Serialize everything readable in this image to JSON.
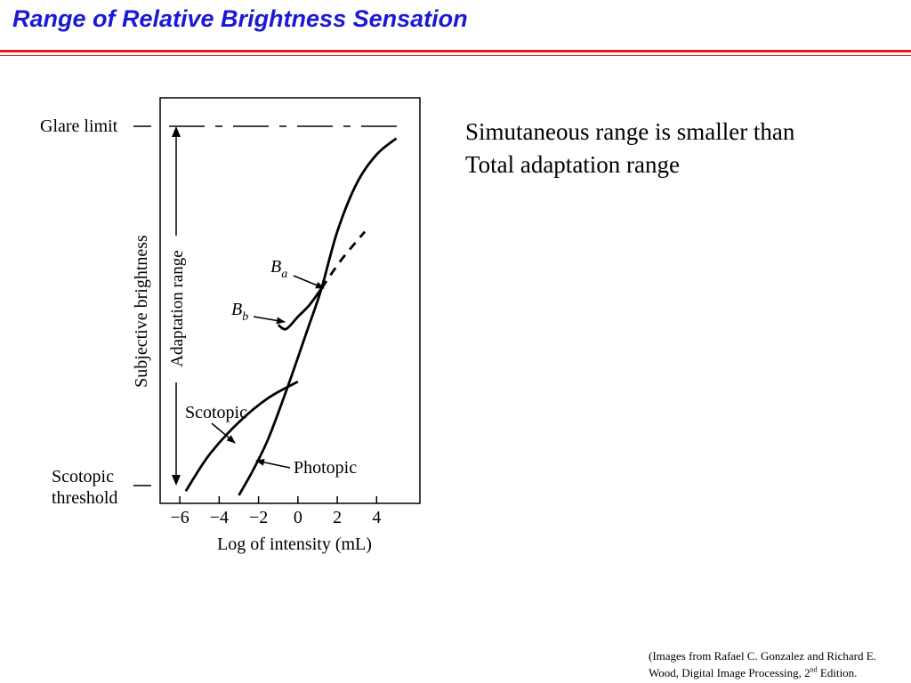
{
  "slide": {
    "title": "Range of Relative Brightness Sensation",
    "body_lines": [
      "Simutaneous range is smaller than",
      "Total adaptation range"
    ],
    "citation": {
      "line1": "(Images from Rafael C. Gonzalez and Richard E.",
      "line2_before": "Wood, Digital Image Processing, 2",
      "line2_sup": "nd",
      "line2_after": " Edition."
    },
    "colors": {
      "title": "#1a1ad6",
      "rule": "#e01b1b"
    }
  },
  "chart_data": {
    "type": "line",
    "xlabel": "Log of intensity (mL)",
    "ylabel": "Subjective brightness",
    "xlim": [
      -7,
      6.2
    ],
    "ylim": [
      0,
      1
    ],
    "x_ticks": [
      -6,
      -4,
      -2,
      0,
      2,
      4
    ],
    "x_tick_labels": [
      "−6",
      "−4",
      "−2",
      "0",
      "2",
      "4"
    ],
    "y_markers": {
      "glare_limit": 0.9,
      "scotopic_threshold": 0.03
    },
    "labels": {
      "glare_limit": "Glare limit",
      "scotopic_threshold_line1": "Scotopic",
      "scotopic_threshold_line2": "threshold",
      "adaptation_range": "Adaptation range",
      "ba_base": "B",
      "ba_sub": "a",
      "bb_base": "B",
      "bb_sub": "b",
      "scotopic": "Scotopic",
      "photopic": "Photopic"
    },
    "series": [
      {
        "name": "Photopic",
        "style": "solid",
        "x": [
          -3,
          -2.3,
          -1.5,
          -0.5,
          0.5,
          1.2,
          2.0,
          3.0,
          4.0,
          5.0
        ],
        "y": [
          0.02,
          0.08,
          0.16,
          0.29,
          0.43,
          0.53,
          0.67,
          0.79,
          0.86,
          0.9
        ]
      },
      {
        "name": "Scotopic",
        "style": "solid",
        "x": [
          -5.7,
          -4.5,
          -3.0,
          -1.5,
          0.0
        ],
        "y": [
          0.03,
          0.12,
          0.2,
          0.26,
          0.3
        ]
      },
      {
        "name": "Bb",
        "style": "solid",
        "x": [
          -1.0,
          -0.6,
          0.0,
          0.6,
          1.2
        ],
        "y": [
          0.44,
          0.43,
          0.46,
          0.49,
          0.53
        ]
      },
      {
        "name": "Ba",
        "style": "dashed",
        "x": [
          1.2,
          2.2,
          3.4
        ],
        "y": [
          0.53,
          0.6,
          0.67
        ]
      }
    ]
  }
}
